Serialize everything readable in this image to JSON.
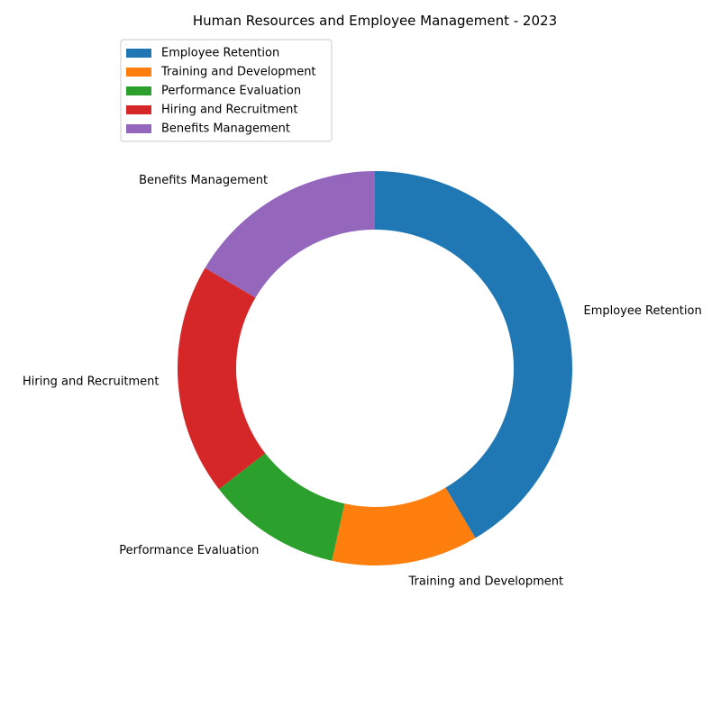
{
  "chart_data": {
    "type": "pie",
    "title": "Human Resources and Employee Management - 2023",
    "categories": [
      "Employee Retention",
      "Training and Development",
      "Performance Evaluation",
      "Hiring and Recruitment",
      "Benefits Management"
    ],
    "values": [
      41.5,
      12.0,
      11.0,
      19.0,
      16.5
    ],
    "colors": [
      "#1f77b4",
      "#ff7f0e",
      "#2ca02c",
      "#d62728",
      "#9467bd"
    ],
    "donut": true,
    "start_angle": "top",
    "direction": "clockwise",
    "legend": {
      "position": "upper-left",
      "entries": [
        "Employee Retention",
        "Training and Development",
        "Performance Evaluation",
        "Hiring and Recruitment",
        "Benefits Management"
      ]
    }
  }
}
